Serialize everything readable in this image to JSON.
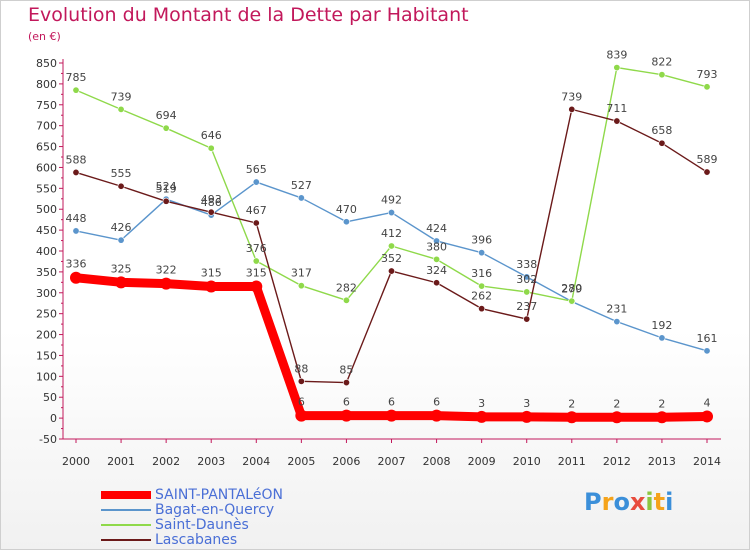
{
  "title": "Evolution du Montant de la Dette par Habitant",
  "subtitle": "(en €)",
  "logo": {
    "text": "Proxiti",
    "colors": [
      "#3b8fd9",
      "#f5a31a",
      "#3b8fd9",
      "#e84c3d",
      "#8dc63f",
      "#f5a31a",
      "#3b8fd9"
    ]
  },
  "chart_data": {
    "type": "line",
    "categories": [
      "2000",
      "2001",
      "2002",
      "2003",
      "2004",
      "2005",
      "2006",
      "2007",
      "2008",
      "2009",
      "2010",
      "2011",
      "2012",
      "2013",
      "2014"
    ],
    "y_ticks": [
      "-50",
      "0",
      "50",
      "100",
      "150",
      "200",
      "250",
      "300",
      "350",
      "400",
      "450",
      "500",
      "550",
      "600",
      "650",
      "700",
      "750",
      "800",
      "850"
    ],
    "ylim": [
      -50,
      850
    ],
    "grid": false,
    "legend_position": "bottom-left",
    "series": [
      {
        "name": "SAINT-PANTALéON",
        "color": "#ff0000",
        "values": [
          336,
          325,
          322,
          315,
          315,
          6,
          6,
          6,
          6,
          3,
          3,
          2,
          2,
          2,
          4
        ]
      },
      {
        "name": "Bagat-en-Quercy",
        "color": "#5b95cc",
        "values": [
          448,
          426,
          524,
          486,
          565,
          527,
          470,
          492,
          424,
          396,
          338,
          279,
          231,
          192,
          161
        ]
      },
      {
        "name": "Saint-Daunès",
        "color": "#8fd94a",
        "values": [
          785,
          739,
          694,
          646,
          376,
          317,
          282,
          412,
          380,
          316,
          302,
          280,
          839,
          822,
          793
        ]
      },
      {
        "name": "Lascabanes",
        "color": "#6b1a1a",
        "values": [
          588,
          555,
          519,
          493,
          467,
          88,
          85,
          352,
          324,
          262,
          237,
          739,
          711,
          658,
          589
        ]
      }
    ]
  }
}
